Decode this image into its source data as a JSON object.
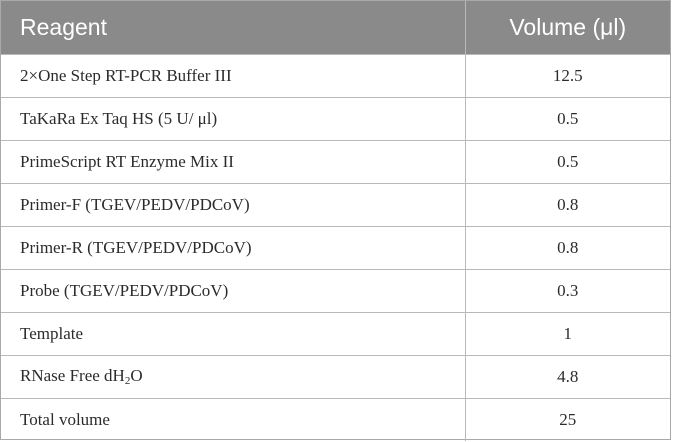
{
  "table": {
    "headers": {
      "reagent": "Reagent",
      "volume": "Volume (μl)"
    },
    "rows": [
      {
        "reagent": "2×One Step RT-PCR Buffer III",
        "volume": "12.5"
      },
      {
        "reagent": "TaKaRa Ex Taq HS (5 U/ μl)",
        "volume": "0.5"
      },
      {
        "reagent": "PrimeScript RT Enzyme Mix II",
        "volume": "0.5"
      },
      {
        "reagent": "Primer-F (TGEV/PEDV/PDCoV)",
        "volume": "0.8"
      },
      {
        "reagent": "Primer-R (TGEV/PEDV/PDCoV)",
        "volume": "0.8"
      },
      {
        "reagent": "Probe (TGEV/PEDV/PDCoV)",
        "volume": "0.3"
      },
      {
        "reagent": "Template",
        "volume": "1"
      },
      {
        "reagent_prefix": "RNase Free dH",
        "reagent_sub": "2",
        "reagent_suffix": "O",
        "volume": "4.8"
      },
      {
        "reagent": "Total volume",
        "volume": "25"
      }
    ]
  },
  "colors": {
    "header_background": "#8a8a8a",
    "header_text": "#ffffff",
    "grid_line": "#b9b9b9"
  }
}
